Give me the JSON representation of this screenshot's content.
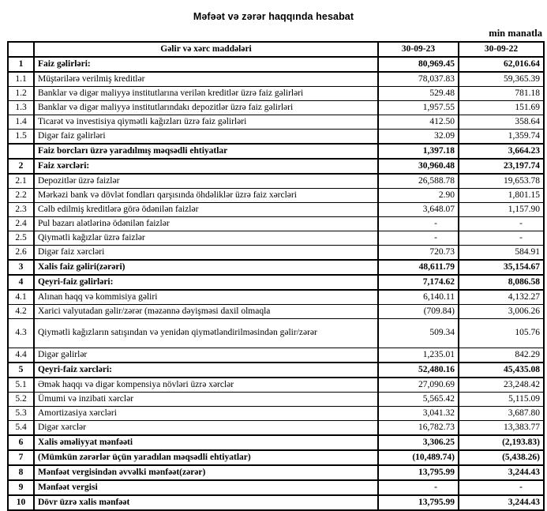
{
  "title": "Məfəət və zərər haqqında hesabat",
  "unit_note": "min manatla",
  "table": {
    "headers": {
      "item": "Gəlir və xərc maddələri",
      "col1": "30-09-23",
      "col2": "30-09-22"
    },
    "rows": [
      {
        "no": "1",
        "label": "Faiz gəlirləri:",
        "v1": "80,969.45",
        "v2": "62,016.64",
        "bold": true
      },
      {
        "no": "1.1",
        "label": "Müştərilərə verilmiş kreditlər",
        "v1": "78,037.83",
        "v2": "59,365.39",
        "bold": false
      },
      {
        "no": "1.2",
        "label": "Banklar və digər maliyyə institutlarına verilən kreditlər üzrə faiz gəlirləri",
        "v1": "529.48",
        "v2": "781.18",
        "bold": false
      },
      {
        "no": "1.3",
        "label": "Banklar və digər maliyyə institutlarındakı depozitlər üzrə faiz gəlirləri",
        "v1": "1,957.55",
        "v2": "151.69",
        "bold": false
      },
      {
        "no": "1.4",
        "label": "Ticarət və investisiya qiymətli kağızları üzrə faiz gəlirləri",
        "v1": "412.50",
        "v2": "358.64",
        "bold": false
      },
      {
        "no": "1.5",
        "label": "Digər faiz gəlirləri",
        "v1": "32.09",
        "v2": "1,359.74",
        "bold": false
      },
      {
        "no": "",
        "label": "Faiz borcları üzrə yaradılmış məqsədli ehtiyatlar",
        "v1": "1,397.18",
        "v2": "3,664.23",
        "bold": true
      },
      {
        "no": "2",
        "label": "Faiz xərcləri:",
        "v1": "30,960.48",
        "v2": "23,197.74",
        "bold": true
      },
      {
        "no": "2.1",
        "label": "Depozitlər üzrə faizlər",
        "v1": "26,588.78",
        "v2": "19,653.78",
        "bold": false
      },
      {
        "no": "2.2",
        "label": "Mərkəzi bank və dövlət fondları qarşısında öhdəliklər üzrə faiz xərcləri",
        "v1": "2.90",
        "v2": "1,801.15",
        "bold": false
      },
      {
        "no": "2.3",
        "label": "Cəlb edilmiş kreditlərə görə ödənilən faizlər",
        "v1": "3,648.07",
        "v2": "1,157.90",
        "bold": false
      },
      {
        "no": "2.4",
        "label": "Pul bazarı alətlərinə ödənilən faizlər",
        "v1": "-",
        "v2": "-",
        "bold": false
      },
      {
        "no": "2.5",
        "label": "Qiymətli kağızlar üzrə faizlər",
        "v1": "-",
        "v2": "-",
        "bold": false
      },
      {
        "no": "2.6",
        "label": "Digər faiz xərcləri",
        "v1": "720.73",
        "v2": "584.91",
        "bold": false
      },
      {
        "no": "3",
        "label": "Xalis faiz gəliri(zərəri)",
        "v1": "48,611.79",
        "v2": "35,154.67",
        "bold": true
      },
      {
        "no": "4",
        "label": "Qeyri-faiz gəlirləri:",
        "v1": "7,174.62",
        "v2": "8,086.58",
        "bold": true
      },
      {
        "no": "4.1",
        "label": "Alınan haqq və kommisiya gəliri",
        "v1": "6,140.11",
        "v2": "4,132.27",
        "bold": false
      },
      {
        "no": "4.2",
        "label": "Xarici valyutadan gəlir/zərər (məzənnə dəyişməsi daxil olmaqla",
        "v1": "(709.84)",
        "v2": "3,006.26",
        "bold": false
      },
      {
        "no": "4.3",
        "label": "Qiymətli kağızların satışından və yenidən qiymətləndirilməsindən gəlir/zərər",
        "v1": "509.34",
        "v2": "105.76",
        "bold": false,
        "tall": true
      },
      {
        "no": "4.4",
        "label": "Digər gəlirlər",
        "v1": "1,235.01",
        "v2": "842.29",
        "bold": false
      },
      {
        "no": "5",
        "label": "Qeyri-faiz xərcləri:",
        "v1": "52,480.16",
        "v2": "45,435.08",
        "bold": true
      },
      {
        "no": "5.1",
        "label": "Əmək haqqı və digər kompensiya növləri üzrə xərclər",
        "v1": "27,090.69",
        "v2": "23,248.42",
        "bold": false
      },
      {
        "no": "5.2",
        "label": "Ümumi və inzibati xərclər",
        "v1": "5,565.42",
        "v2": "5,115.09",
        "bold": false
      },
      {
        "no": "5.3",
        "label": "Amortizasiya xərcləri",
        "v1": "3,041.32",
        "v2": "3,687.80",
        "bold": false
      },
      {
        "no": "5.4",
        "label": "Digər xərclər",
        "v1": "16,782.73",
        "v2": "13,383.77",
        "bold": false
      },
      {
        "no": "6",
        "label": "Xalis əməliyyat mənfəəti",
        "v1": "3,306.25",
        "v2": "(2,193.83)",
        "bold": true
      },
      {
        "no": "7",
        "label": "(Mümkün zərərlər üçün yaradılan məqsədli ehtiyatlar)",
        "v1": "(10,489.74)",
        "v2": "(5,438.26)",
        "bold": true
      },
      {
        "no": "8",
        "label": "Mənfəət vergisindən əvvəlki mənfəət(zərər)",
        "v1": "13,795.99",
        "v2": "3,244.43",
        "bold": true
      },
      {
        "no": "9",
        "label": "Mənfəət vergisi",
        "v1": "-",
        "v2": "-",
        "bold": true
      },
      {
        "no": "10",
        "label": "Dövr üzrə xalis mənfəət",
        "v1": "13,795.99",
        "v2": "3,244.43",
        "bold": true
      }
    ]
  },
  "colors": {
    "text": "#000000",
    "background": "#ffffff",
    "border": "#000000"
  }
}
